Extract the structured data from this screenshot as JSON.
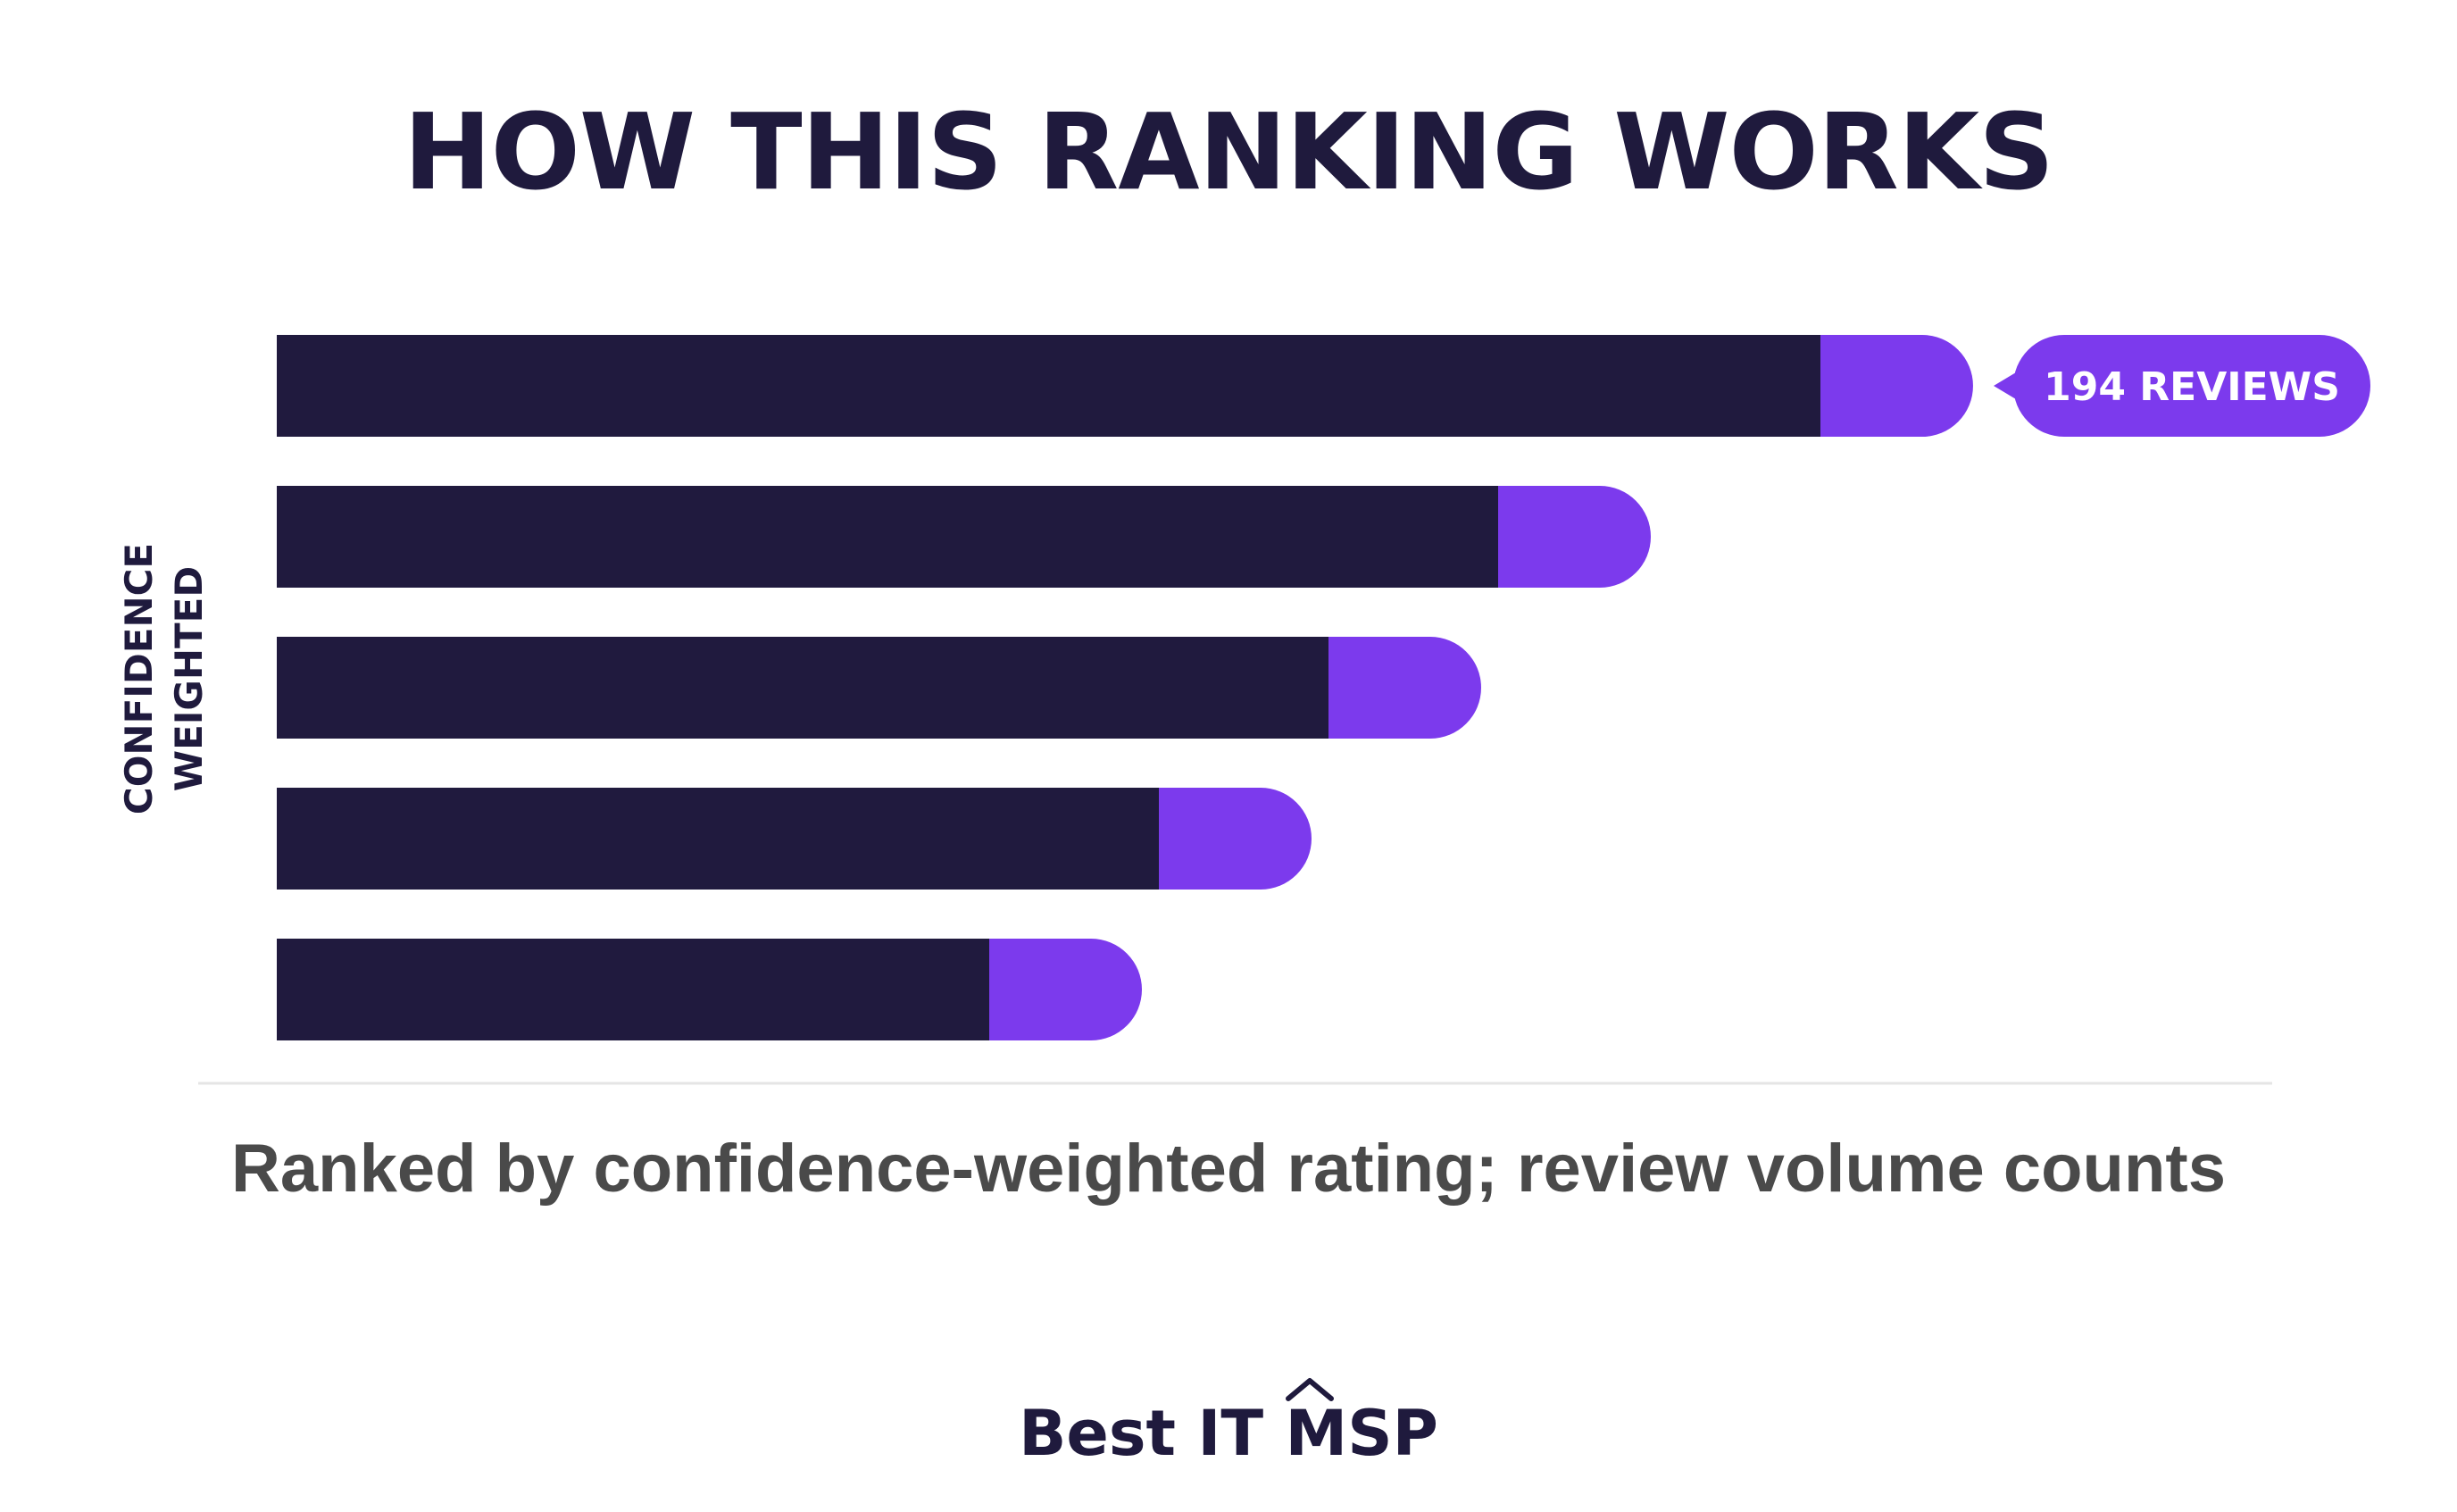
{
  "title": "HOW THIS RANKING WORKS",
  "caption": "Ranked by confidence-weighted rating; review volume counts",
  "brand": {
    "name": "Best IT MSP",
    "mark_icon": "caret-up-icon"
  },
  "colors": {
    "bar_base": "#201a3e",
    "bar_accent": "#7c3aed",
    "title": "#1f1a3d",
    "caption": "#4a4a4a",
    "divider": "#e5e5e5",
    "badge_text": "#ffffff"
  },
  "chart_data": {
    "type": "bar",
    "orientation": "horizontal",
    "stacked": true,
    "ylabel": "CONFIDENCE WEIGHTED",
    "xlabel": "",
    "xlim": [
      0,
      100
    ],
    "categories": [
      "",
      "",
      "",
      "",
      ""
    ],
    "series": [
      {
        "values": [
          91,
          72,
          62,
          52,
          42
        ]
      },
      {
        "values": [
          9,
          9,
          9,
          9,
          9
        ]
      }
    ],
    "annotations": [
      {
        "bar_index": 0,
        "text": "194 REVIEWS"
      }
    ],
    "grid": false,
    "legend": "none"
  }
}
